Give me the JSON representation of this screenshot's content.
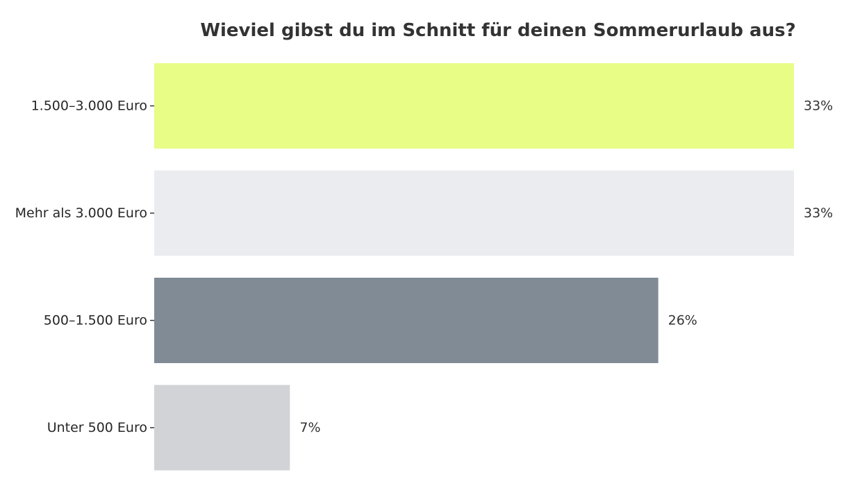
{
  "chart_data": {
    "type": "bar",
    "orientation": "horizontal",
    "title": "Wieviel gibst du im Schnitt für deinen Sommerurlaub aus?",
    "xlabel": "",
    "ylabel": "",
    "xlim": [
      0,
      33
    ],
    "grid": false,
    "categories": [
      "1.500–3.000 Euro",
      "Mehr als 3.000 Euro",
      "500–1.500 Euro",
      "Unter 500 Euro"
    ],
    "values": [
      33,
      33,
      26,
      7
    ],
    "value_labels": [
      "33%",
      "33%",
      "26%",
      "7%"
    ],
    "colors": [
      "#e7fd86",
      "#ebecf0",
      "#808b96",
      "#d2d3d7"
    ]
  }
}
